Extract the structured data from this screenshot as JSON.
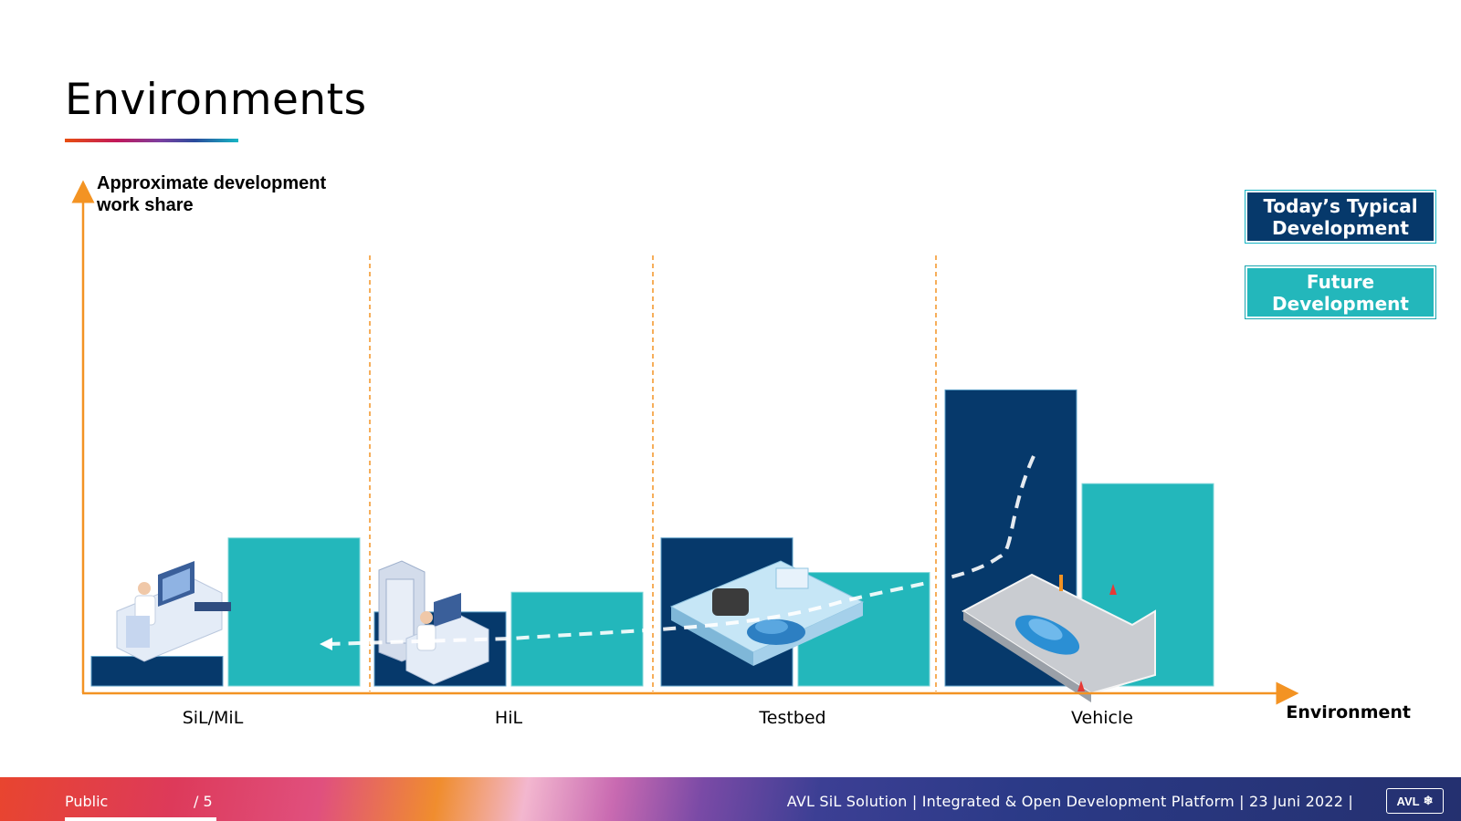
{
  "page": {
    "title": "Environments"
  },
  "legend": {
    "today": "Today’s Typical Development",
    "future": "Future Development"
  },
  "colors": {
    "today": "#06396b",
    "future": "#23b7bb",
    "axis": "#f39323",
    "divider": "#f39323"
  },
  "chart_data": {
    "type": "bar",
    "ylabel": "Approximate development work share",
    "xlabel": "Environment",
    "categories": [
      "SiL/MiL",
      "HiL",
      "Testbed",
      "Vehicle"
    ],
    "ylim": [
      0,
      100
    ],
    "series": [
      {
        "name": "Today’s Typical Development",
        "values": [
          6,
          15,
          30,
          60
        ]
      },
      {
        "name": "Future Development",
        "values": [
          30,
          19,
          23,
          41
        ]
      }
    ],
    "annotations": [
      "arrow-from-vehicle-to-sil"
    ],
    "icons": [
      "engineer-workstation-icon",
      "hil-rack-workstation-icon",
      "testbed-engine-car-icon",
      "road-car-icon"
    ]
  },
  "footer": {
    "classification": "Public",
    "page_number": "/ 5",
    "info": "AVL SiL Solution | Integrated & Open Development Platform | 23 Juni 2022 |",
    "logo_text": "AVL"
  }
}
